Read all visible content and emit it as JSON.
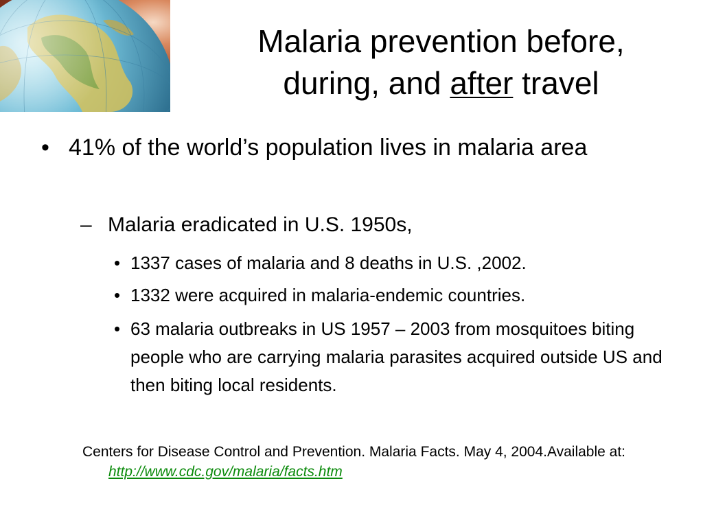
{
  "slide": {
    "title_part1": "Malaria prevention before,",
    "title_part2a": "during, and ",
    "title_emphasis": "after",
    "title_part2b": " travel",
    "bullets": {
      "main": "41% of the world’s population lives in malaria area",
      "sub": "Malaria eradicated in U.S. 1950s,",
      "details": [
        "1337 cases of malaria and 8 deaths in U.S. ,2002.",
        "1332 were acquired in malaria-endemic countries.",
        "63 malaria outbreaks in US 1957 – 2003 from mosquitoes biting people who are carrying malaria parasites acquired outside US and then biting local residents."
      ]
    },
    "citation": {
      "text": "Centers for Disease Control and Prevention. Malaria Facts. May 4, 2004.Available at: ",
      "link": "http://www.cdc.gov/malaria/facts.htm"
    },
    "bullet_symbol": "•",
    "dash_symbol": "–",
    "colors": {
      "link": "#0a8a0a",
      "text": "#000000",
      "background": "#ffffff"
    }
  }
}
